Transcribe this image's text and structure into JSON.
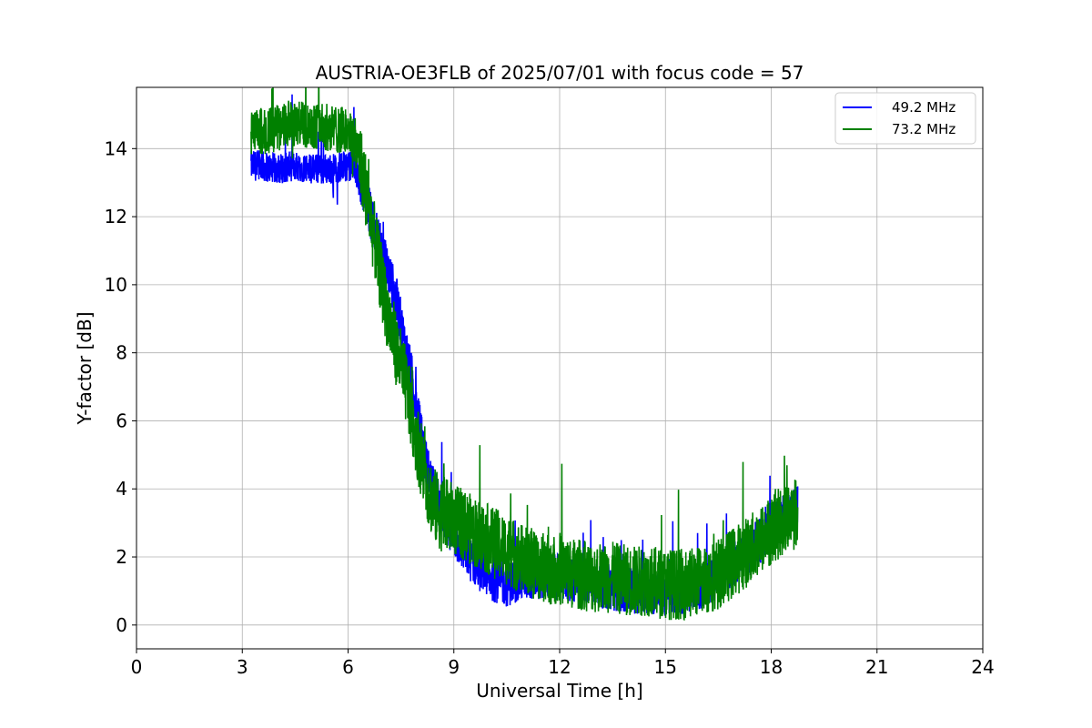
{
  "chart_data": {
    "type": "line",
    "title": "AUSTRIA-OE3FLB of 2025/07/01 with focus code = 57",
    "xlabel": "Universal Time [h]",
    "ylabel": "Y-factor [dB]",
    "xlim": [
      0,
      24
    ],
    "ylim": [
      -0.7,
      15.8
    ],
    "xticks": [
      0,
      3,
      6,
      9,
      12,
      15,
      18,
      21,
      24
    ],
    "yticks": [
      0,
      2,
      4,
      6,
      8,
      10,
      12,
      14
    ],
    "grid": true,
    "legend_position": "top-right",
    "series": [
      {
        "name": "49.2 MHz",
        "color": "#0000ff",
        "x": [
          3.25,
          3.5,
          4.0,
          4.5,
          5.0,
          5.5,
          6.0,
          6.2,
          6.4,
          6.6,
          6.8,
          7.0,
          7.2,
          7.4,
          7.6,
          7.8,
          8.0,
          8.2,
          8.4,
          8.6,
          8.8,
          9.0,
          9.5,
          10.0,
          10.5,
          11.0,
          11.5,
          12.0,
          12.5,
          13.0,
          13.5,
          14.0,
          14.5,
          15.0,
          15.5,
          16.0,
          16.5,
          17.0,
          17.5,
          18.0,
          18.5,
          18.75
        ],
        "values": [
          13.5,
          13.5,
          13.4,
          13.5,
          13.4,
          13.4,
          13.5,
          13.4,
          13.0,
          12.2,
          11.5,
          10.8,
          10.2,
          9.4,
          8.3,
          7.3,
          6.0,
          4.8,
          4.0,
          3.5,
          3.0,
          2.6,
          1.9,
          1.4,
          1.2,
          1.4,
          1.4,
          1.4,
          1.3,
          1.2,
          1.1,
          1.0,
          1.0,
          0.9,
          1.0,
          1.1,
          1.4,
          1.9,
          2.3,
          2.8,
          3.3,
          3.5
        ],
        "noise": 0.45
      },
      {
        "name": "73.2 MHz",
        "color": "#008000",
        "x": [
          3.25,
          3.5,
          4.0,
          4.5,
          5.0,
          5.5,
          6.0,
          6.2,
          6.4,
          6.6,
          6.8,
          7.0,
          7.2,
          7.4,
          7.6,
          7.8,
          8.0,
          8.2,
          8.4,
          8.6,
          8.8,
          9.0,
          9.5,
          10.0,
          10.5,
          11.0,
          11.5,
          12.0,
          12.5,
          13.0,
          13.5,
          14.0,
          14.5,
          15.0,
          15.5,
          16.0,
          16.5,
          17.0,
          17.5,
          18.0,
          18.5,
          18.75
        ],
        "values": [
          14.4,
          14.5,
          14.6,
          14.7,
          14.7,
          14.6,
          14.5,
          14.2,
          13.4,
          12.2,
          11.0,
          9.8,
          8.8,
          8.0,
          7.2,
          6.2,
          5.2,
          4.3,
          3.6,
          3.3,
          3.2,
          3.1,
          2.8,
          2.5,
          2.2,
          1.9,
          1.7,
          1.6,
          1.5,
          1.4,
          1.4,
          1.3,
          1.3,
          1.2,
          1.2,
          1.3,
          1.5,
          1.9,
          2.3,
          2.8,
          3.2,
          3.3
        ],
        "noise": 0.7
      }
    ]
  }
}
